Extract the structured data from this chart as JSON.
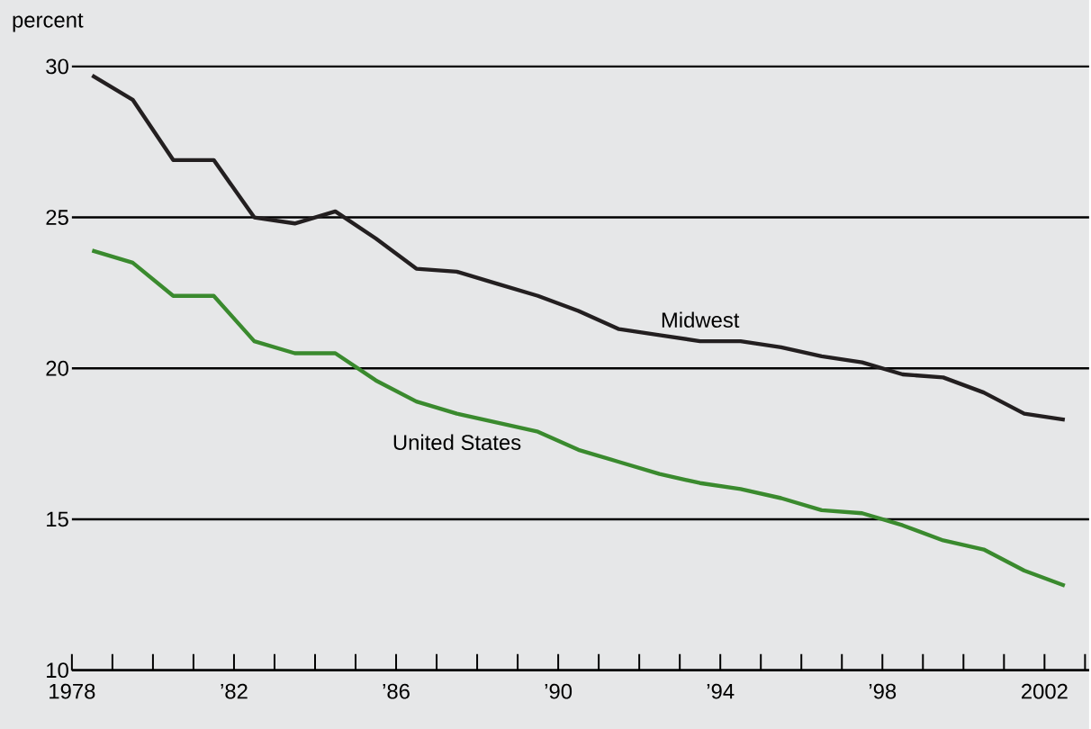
{
  "chart_data": {
    "type": "line",
    "ylabel": "percent",
    "grid": "y",
    "line_style": "solid",
    "x": [
      1978.5,
      1979.5,
      1980.5,
      1981.5,
      1982.5,
      1983.5,
      1984.5,
      1985.5,
      1986.5,
      1987.5,
      1988.5,
      1989.5,
      1990.5,
      1991.5,
      1992.5,
      1993.5,
      1994.5,
      1995.5,
      1996.5,
      1997.5,
      1998.5,
      1999.5,
      2000.5,
      2001.5,
      2002.5
    ],
    "series": [
      {
        "name": "Midwest",
        "color": "#231f20",
        "values": [
          29.7,
          28.9,
          26.9,
          26.9,
          25.0,
          24.8,
          25.2,
          24.3,
          23.3,
          23.2,
          22.8,
          22.4,
          21.9,
          21.3,
          21.1,
          20.9,
          20.9,
          20.7,
          20.4,
          20.2,
          19.8,
          19.7,
          19.2,
          18.5,
          18.3
        ]
      },
      {
        "name": "United States",
        "color": "#3a8a2e",
        "values": [
          23.9,
          23.5,
          22.4,
          22.4,
          20.9,
          20.5,
          20.5,
          19.6,
          18.9,
          18.5,
          18.2,
          17.9,
          17.3,
          16.9,
          16.5,
          16.2,
          16.0,
          15.7,
          15.3,
          15.2,
          14.8,
          14.3,
          14.0,
          13.3,
          12.8
        ]
      }
    ],
    "xlim": [
      1978,
      2003.1
    ],
    "ylim": [
      10,
      30
    ],
    "xticks": [
      1978,
      {
        "value": 1979,
        "label": null
      },
      {
        "value": 1980,
        "label": null
      },
      {
        "value": 1981,
        "label": null
      },
      {
        "value": 1982,
        "label": "’82"
      },
      {
        "value": 1983,
        "label": null
      },
      {
        "value": 1984,
        "label": null
      },
      {
        "value": 1985,
        "label": null
      },
      {
        "value": 1986,
        "label": "’86"
      },
      {
        "value": 1987,
        "label": null
      },
      {
        "value": 1988,
        "label": null
      },
      {
        "value": 1989,
        "label": null
      },
      {
        "value": 1990,
        "label": "’90"
      },
      {
        "value": 1991,
        "label": null
      },
      {
        "value": 1992,
        "label": null
      },
      {
        "value": 1993,
        "label": null
      },
      {
        "value": 1994,
        "label": "’94"
      },
      {
        "value": 1995,
        "label": null
      },
      {
        "value": 1996,
        "label": null
      },
      {
        "value": 1997,
        "label": null
      },
      {
        "value": 1998,
        "label": "’98"
      },
      {
        "value": 1999,
        "label": null
      },
      {
        "value": 2000,
        "label": null
      },
      {
        "value": 2001,
        "label": null
      },
      {
        "value": 2002,
        "label": "2002"
      },
      {
        "value": 2003,
        "label": null
      }
    ],
    "yticks": [
      10,
      15,
      20,
      25,
      30
    ]
  }
}
